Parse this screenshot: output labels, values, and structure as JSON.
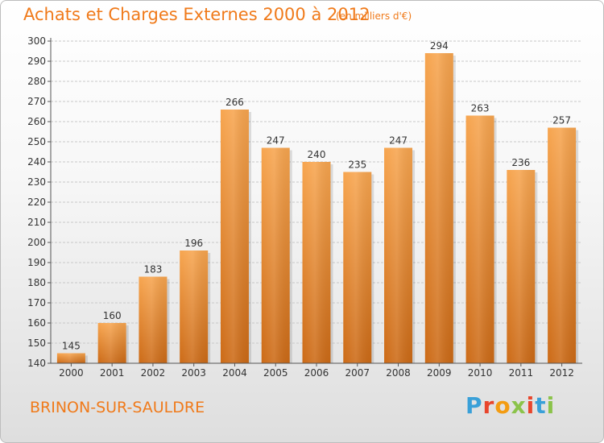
{
  "header": {
    "title": "Achats et Charges Externes 2000 à 2012",
    "unit": "(en milliers d'€)"
  },
  "footer": {
    "commune": "BRINON-SUR-SAULDRE",
    "logo_text": "Proxiti",
    "logo_colors": [
      "#3aa0d8",
      "#e8452c",
      "#f39c12",
      "#8bc34a",
      "#e8452c",
      "#3aa0d8",
      "#8bc34a"
    ]
  },
  "colors": {
    "bar_light": "#f7a54f",
    "bar_dark": "#cc6a16",
    "accent": "#f07a1a"
  },
  "chart_data": {
    "type": "bar",
    "title": "Achats et Charges Externes 2000 à 2012",
    "subtitle": "(en milliers d'€)",
    "xlabel": "",
    "ylabel": "",
    "categories": [
      "2000",
      "2001",
      "2002",
      "2003",
      "2004",
      "2005",
      "2006",
      "2007",
      "2008",
      "2009",
      "2010",
      "2011",
      "2012"
    ],
    "values": [
      145,
      160,
      183,
      196,
      266,
      247,
      240,
      235,
      247,
      294,
      263,
      236,
      257
    ],
    "ylim": [
      140,
      300
    ],
    "yticks": [
      140,
      150,
      160,
      170,
      180,
      190,
      200,
      210,
      220,
      230,
      240,
      250,
      260,
      270,
      280,
      290,
      300
    ],
    "grid": true,
    "legend": "none"
  }
}
